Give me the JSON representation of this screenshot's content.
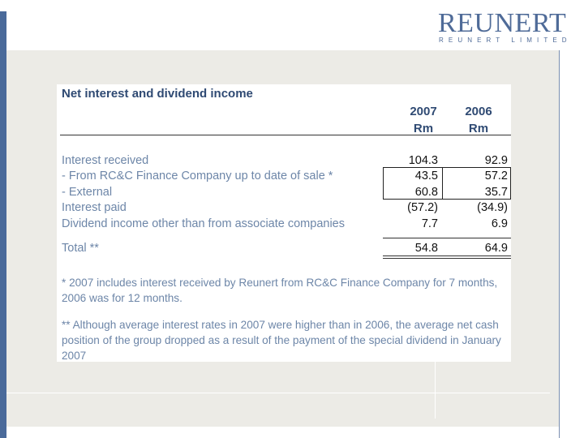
{
  "header": {
    "logo_text": "REUNERT",
    "logo_subtitle": "REUNERT LIMITED"
  },
  "table": {
    "title": "Net interest and dividend income",
    "columns": [
      {
        "year": "2007",
        "unit": "Rm"
      },
      {
        "year": "2006",
        "unit": "Rm"
      }
    ],
    "rows": [
      {
        "label": "Interest received",
        "v2007": "104.3",
        "v2006": "92.9"
      },
      {
        "label": "- From RC&C Finance Company up to date of sale *",
        "v2007": "43.5",
        "v2006": "57.2"
      },
      {
        "label": "- External",
        "v2007": "60.8",
        "v2006": "35.7"
      },
      {
        "label": "Interest paid",
        "v2007": "(57.2)",
        "v2006": "(34.9)"
      },
      {
        "label": "Dividend income other than from associate companies",
        "v2007": "7.7",
        "v2006": "6.9"
      }
    ],
    "total": {
      "label": "Total **",
      "v2007": "54.8",
      "v2006": "64.9"
    }
  },
  "footnotes": {
    "note1": "* 2007 includes interest received by Reunert from RC&C Finance Company for 7 months, 2006 was for 12 months.",
    "note2": "** Although average interest rates in 2007 were higher than in 2006, the average net cash position of the group dropped as a result of the payment of the special dividend in January 2007"
  },
  "colors": {
    "accent": "#4a6a9a",
    "heading": "#2f4a73",
    "label": "#6d86a8",
    "panel": "#ecebe6"
  }
}
